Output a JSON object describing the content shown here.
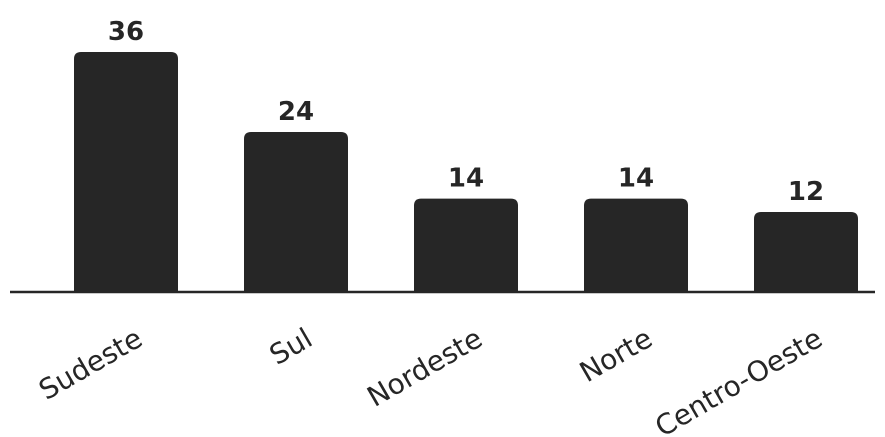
{
  "chart_data": {
    "type": "bar",
    "categories": [
      "Sudeste",
      "Sul",
      "Nordeste",
      "Norte",
      "Centro-Oeste"
    ],
    "values": [
      36,
      24,
      14,
      14,
      12
    ],
    "title": "",
    "xlabel": "",
    "ylabel": "",
    "ylim": [
      0,
      36
    ],
    "grid": false,
    "legend": "none",
    "data_labels": true,
    "bar_color": "#262626",
    "axis_color": "#262626",
    "text_color": "#262626"
  }
}
